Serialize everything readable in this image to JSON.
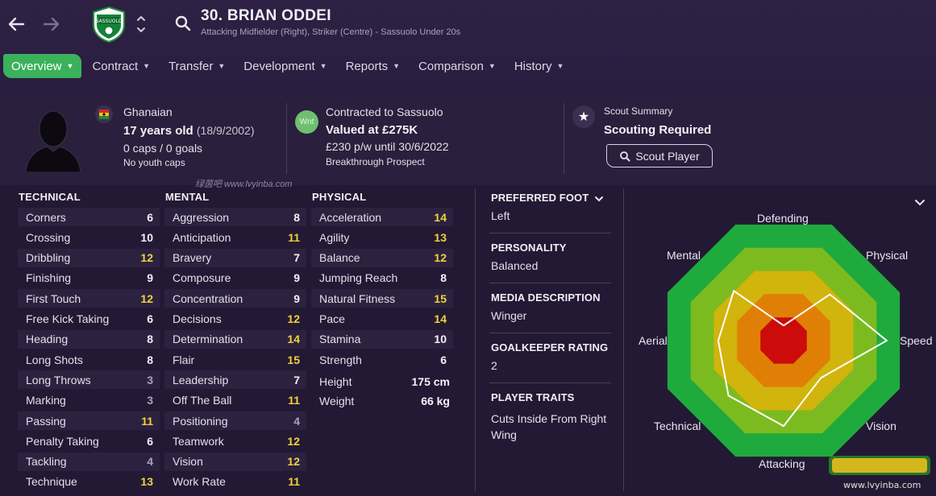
{
  "header": {
    "player_name": "30. BRIAN ODDEI",
    "player_subtitle": "Attacking Midfielder (Right), Striker (Centre) - Sassuolo Under 20s"
  },
  "tabs": [
    {
      "label": "Overview",
      "active": true
    },
    {
      "label": "Contract"
    },
    {
      "label": "Transfer"
    },
    {
      "label": "Development"
    },
    {
      "label": "Reports"
    },
    {
      "label": "Comparison"
    },
    {
      "label": "History"
    }
  ],
  "profile": {
    "nationality": "Ghanaian",
    "age": "17 years old",
    "dob": "(18/9/2002)",
    "caps": "0 caps / 0 goals",
    "youth_caps": "No youth caps"
  },
  "contract": {
    "badge": "Wnt",
    "contracted": "Contracted to Sassuolo",
    "value": "Valued at £275K",
    "wage": "£230 p/w until 30/6/2022",
    "prospect": "Breakthrough Prospect"
  },
  "scout": {
    "summary_label": "Scout Summary",
    "status": "Scouting Required",
    "button_label": "Scout Player"
  },
  "watermark_top": "绿茵吧 www.lvyinba.com",
  "technical": {
    "heading": "TECHNICAL",
    "rows": [
      {
        "label": "Corners",
        "value": "6"
      },
      {
        "label": "Crossing",
        "value": "10"
      },
      {
        "label": "Dribbling",
        "value": "12"
      },
      {
        "label": "Finishing",
        "value": "9"
      },
      {
        "label": "First Touch",
        "value": "12"
      },
      {
        "label": "Free Kick Taking",
        "value": "6"
      },
      {
        "label": "Heading",
        "value": "8"
      },
      {
        "label": "Long Shots",
        "value": "8"
      },
      {
        "label": "Long Throws",
        "value": "3"
      },
      {
        "label": "Marking",
        "value": "3"
      },
      {
        "label": "Passing",
        "value": "11"
      },
      {
        "label": "Penalty Taking",
        "value": "6"
      },
      {
        "label": "Tackling",
        "value": "4"
      },
      {
        "label": "Technique",
        "value": "13"
      }
    ]
  },
  "mental": {
    "heading": "MENTAL",
    "rows": [
      {
        "label": "Aggression",
        "value": "8"
      },
      {
        "label": "Anticipation",
        "value": "11"
      },
      {
        "label": "Bravery",
        "value": "7"
      },
      {
        "label": "Composure",
        "value": "9"
      },
      {
        "label": "Concentration",
        "value": "9"
      },
      {
        "label": "Decisions",
        "value": "12"
      },
      {
        "label": "Determination",
        "value": "14"
      },
      {
        "label": "Flair",
        "value": "15"
      },
      {
        "label": "Leadership",
        "value": "7"
      },
      {
        "label": "Off The Ball",
        "value": "11"
      },
      {
        "label": "Positioning",
        "value": "4"
      },
      {
        "label": "Teamwork",
        "value": "12"
      },
      {
        "label": "Vision",
        "value": "12"
      },
      {
        "label": "Work Rate",
        "value": "11"
      }
    ]
  },
  "physical": {
    "heading": "PHYSICAL",
    "rows": [
      {
        "label": "Acceleration",
        "value": "14"
      },
      {
        "label": "Agility",
        "value": "13"
      },
      {
        "label": "Balance",
        "value": "12"
      },
      {
        "label": "Jumping Reach",
        "value": "8"
      },
      {
        "label": "Natural Fitness",
        "value": "15"
      },
      {
        "label": "Pace",
        "value": "14"
      },
      {
        "label": "Stamina",
        "value": "10"
      },
      {
        "label": "Strength",
        "value": "6"
      }
    ],
    "height_label": "Height",
    "height_value": "175 cm",
    "weight_label": "Weight",
    "weight_value": "66 kg"
  },
  "info": {
    "preferred_foot_label": "PREFERRED FOOT",
    "preferred_foot": "Left",
    "personality_label": "PERSONALITY",
    "personality": "Balanced",
    "media_label": "MEDIA DESCRIPTION",
    "media": "Winger",
    "gk_label": "GOALKEEPER RATING",
    "gk": "2",
    "traits_label": "PLAYER TRAITS",
    "traits_line1": "Cuts Inside From Right",
    "traits_line2": "Wing"
  },
  "radar": {
    "labels": {
      "defending": "Defending",
      "physical": "Physical",
      "speed": "Speed",
      "vision": "Vision",
      "attacking": "Attacking",
      "technical": "Technical",
      "aerial": "Aerial",
      "mental": "Mental"
    },
    "axes": [
      "Defending",
      "Physical",
      "Speed",
      "Vision",
      "Attacking",
      "Technical",
      "Aerial",
      "Mental"
    ],
    "values": [
      0.12,
      0.52,
      0.82,
      0.42,
      0.68,
      0.62,
      0.52,
      0.56
    ],
    "band_colors": [
      "#1faa3e",
      "#7cbb20",
      "#d1b40c",
      "#e07f06",
      "#cc0b0b"
    ]
  },
  "colors": {
    "accent_green": "#3bb15b",
    "highlight_yellow": "#f2d33a"
  }
}
